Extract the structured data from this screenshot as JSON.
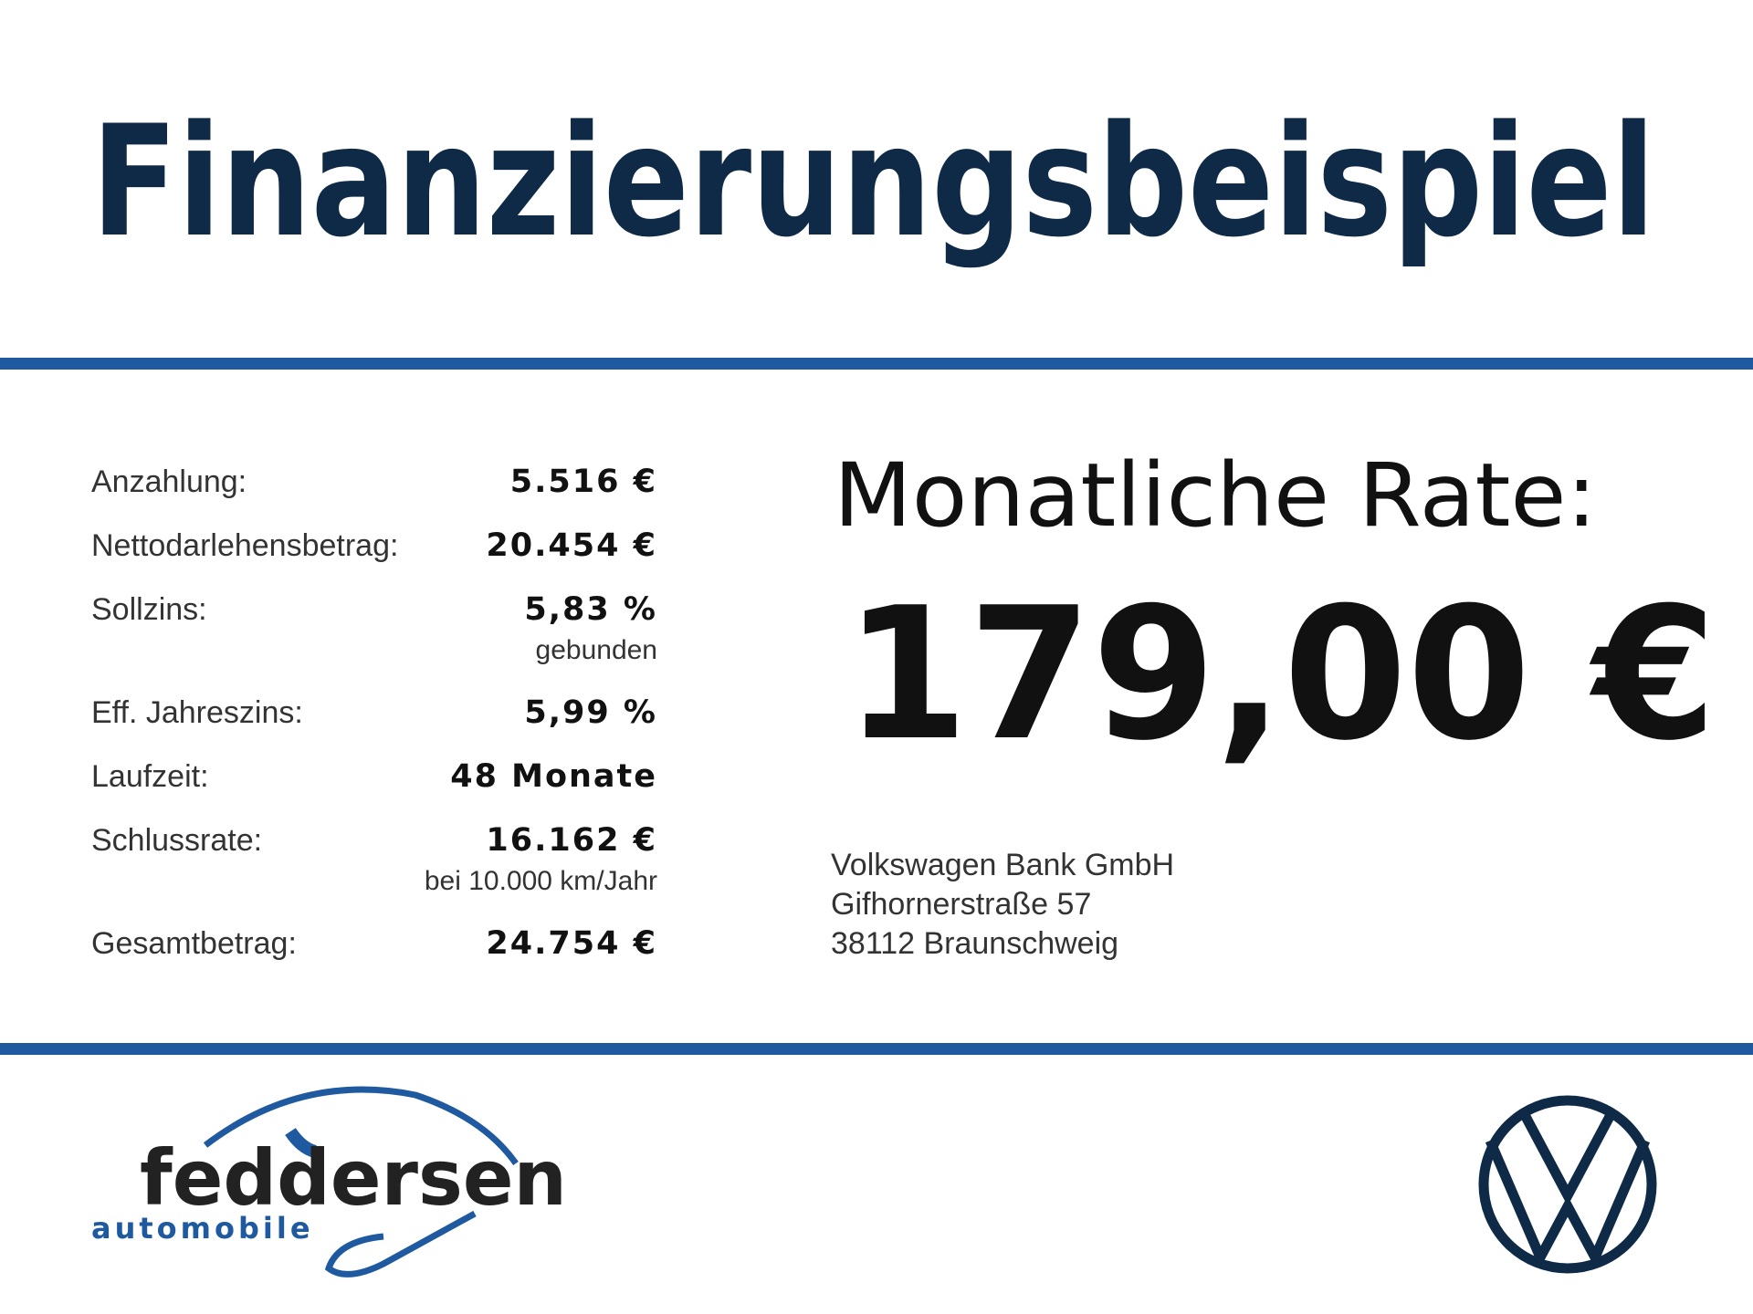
{
  "header": {
    "title": "Finanzierungsbeispiel"
  },
  "table": {
    "rows": [
      {
        "label": "Anzahlung:",
        "value": "5.516 €"
      },
      {
        "label": "Nettodarlehensbetrag:",
        "value": "20.454 €"
      },
      {
        "label": "Sollzins:",
        "value": "5,83 %",
        "note": "gebunden"
      },
      {
        "label": "Eff. Jahreszins:",
        "value": "5,99 %"
      },
      {
        "label": "Laufzeit:",
        "value": "48 Monate"
      },
      {
        "label": "Schlussrate:",
        "value": "16.162 €",
        "note": "bei 10.000 km/Jahr"
      },
      {
        "label": "Gesamtbetrag:",
        "value": "24.754 €"
      }
    ]
  },
  "rate": {
    "label": "Monatliche Rate:",
    "value": "179,00 €"
  },
  "bank": {
    "lines": [
      "Volkswagen Bank GmbH",
      "Gifhornerstraße 57",
      "38112 Braunschweig"
    ]
  },
  "dealer": {
    "name": "feddersen",
    "subtitle": "automobile"
  }
}
